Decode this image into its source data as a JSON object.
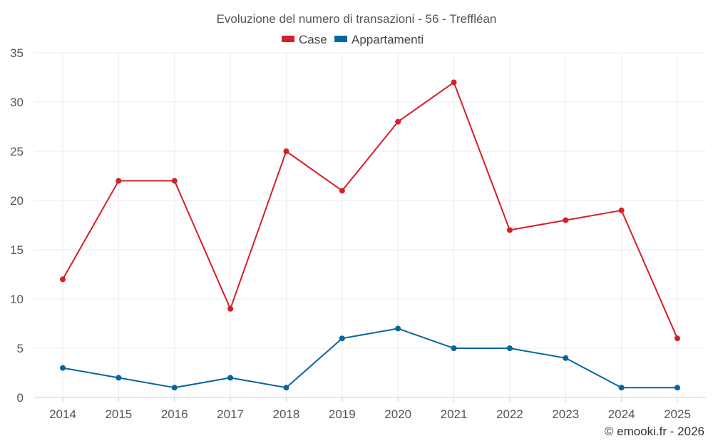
{
  "chart_data": {
    "type": "line",
    "title": "Evoluzione del numero di transazioni - 56 - Treffléan",
    "categories": [
      "2014",
      "2015",
      "2016",
      "2017",
      "2018",
      "2019",
      "2020",
      "2021",
      "2022",
      "2023",
      "2024",
      "2025"
    ],
    "series": [
      {
        "name": "Case",
        "color": "#d42026",
        "values": [
          12,
          22,
          22,
          9,
          25,
          21,
          28,
          32,
          17,
          18,
          19,
          6
        ]
      },
      {
        "name": "Appartamenti",
        "color": "#0565a0",
        "values": [
          3,
          2,
          1,
          2,
          1,
          6,
          7,
          5,
          5,
          4,
          1,
          1
        ]
      }
    ],
    "ylim": [
      0,
      35
    ],
    "yticks": [
      0,
      5,
      10,
      15,
      20,
      25,
      30,
      35
    ],
    "grid": true,
    "legend_position": "top-center"
  },
  "credit": "© emooki.fr - 2026"
}
